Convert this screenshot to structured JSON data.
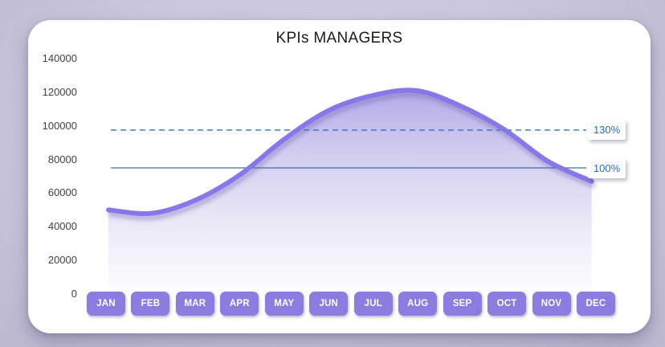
{
  "chart_data": {
    "type": "area",
    "title": "KPIs MANAGERS",
    "categories": [
      "JAN",
      "FEB",
      "MAR",
      "APR",
      "MAY",
      "JUN",
      "JUL",
      "AUG",
      "SEP",
      "OCT",
      "NOV",
      "DEC"
    ],
    "values": [
      50000,
      48000,
      56000,
      71000,
      92000,
      109000,
      118000,
      121000,
      112000,
      98000,
      79000,
      67000
    ],
    "xlabel": "",
    "ylabel": "",
    "ylim": [
      0,
      140000
    ],
    "y_ticks": [
      140000,
      120000,
      100000,
      80000,
      60000,
      40000,
      20000,
      0
    ],
    "grid": "off",
    "legend_position": "none",
    "reference_lines": [
      {
        "label": "130%",
        "value": 97500,
        "style": "dashed",
        "color": "#2e74b5"
      },
      {
        "label": "100%",
        "value": 75000,
        "style": "solid",
        "color": "#2e74b5"
      }
    ],
    "series_color": "#8678e8",
    "area_gradient": [
      "#b3aae8",
      "#d3cef0",
      "#eceaf7",
      "#fdfdff"
    ]
  },
  "colors": {
    "page_background": "#cbc7dc",
    "card_background": "#ffffff",
    "month_button_background": "#8b7ce0",
    "month_button_text": "#ffffff",
    "axis_label": "#404040",
    "ref_label_text": "#2e6db5",
    "title_text": "#1a1a1a"
  }
}
